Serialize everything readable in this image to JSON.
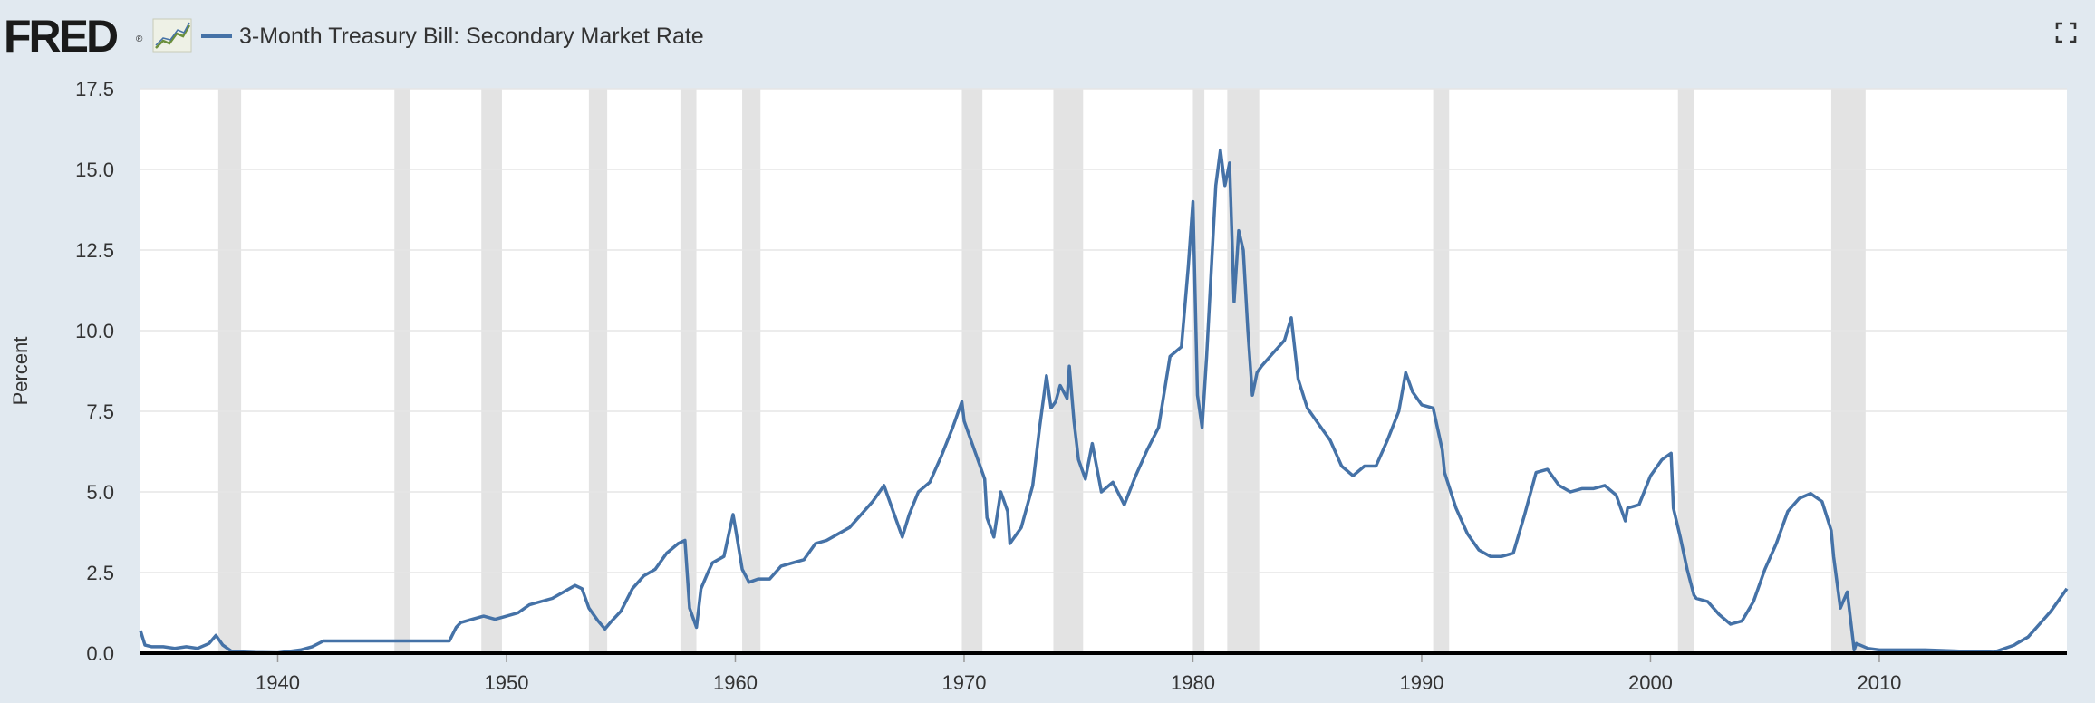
{
  "header": {
    "logo_text": "FRED",
    "logo_reg": "®",
    "series_title": "3-Month Treasury Bill: Secondary Market Rate"
  },
  "icons": {
    "graph": "graph-icon",
    "fullscreen": "fullscreen-icon"
  },
  "colors": {
    "series": "#4572a7",
    "recession": "#e3e3e3",
    "background": "#e1e9f0",
    "plot_background": "#ffffff",
    "grid": "#e6e6e6"
  },
  "chart_data": {
    "type": "line",
    "ylabel": "Percent",
    "xlim": [
      1934,
      2018.2
    ],
    "ylim": [
      0,
      17.5
    ],
    "yticks": [
      "0.0",
      "2.5",
      "5.0",
      "7.5",
      "10.0",
      "12.5",
      "15.0",
      "17.5"
    ],
    "xticks": [
      "1940",
      "1950",
      "1960",
      "1970",
      "1980",
      "1990",
      "2000",
      "2010"
    ],
    "grid": "horizontal",
    "recessions": [
      [
        1937.4,
        1938.4
      ],
      [
        1945.1,
        1945.8
      ],
      [
        1948.9,
        1949.8
      ],
      [
        1953.6,
        1954.4
      ],
      [
        1957.6,
        1958.3
      ],
      [
        1960.3,
        1961.1
      ],
      [
        1969.9,
        1970.8
      ],
      [
        1973.9,
        1975.2
      ],
      [
        1980.0,
        1980.5
      ],
      [
        1981.5,
        1982.9
      ],
      [
        1990.5,
        1991.2
      ],
      [
        2001.2,
        2001.9
      ],
      [
        2007.9,
        2009.4
      ]
    ],
    "series": [
      {
        "x": [
          1934.0,
          1934.2,
          1934.5,
          1935.0,
          1935.5,
          1936.0,
          1936.5,
          1937.0,
          1937.3,
          1937.6,
          1938.0,
          1939.0,
          1940.0,
          1941.0,
          1941.5,
          1942.0,
          1942.3,
          1942.6,
          1943.0,
          1945.0,
          1947.0,
          1947.5,
          1947.8,
          1948.0,
          1948.5,
          1949.0,
          1949.5,
          1950.0,
          1950.5,
          1951.0,
          1951.5,
          1952.0,
          1952.5,
          1953.0,
          1953.3,
          1953.6,
          1954.0,
          1954.3,
          1954.6,
          1955.0,
          1955.5,
          1956.0,
          1956.5,
          1957.0,
          1957.5,
          1957.8,
          1958.0,
          1958.3,
          1958.5,
          1958.8,
          1959.0,
          1959.5,
          1959.9,
          1960.0,
          1960.3,
          1960.6,
          1961.0,
          1961.5,
          1962.0,
          1962.5,
          1963.0,
          1963.5,
          1964.0,
          1965.0,
          1965.5,
          1966.0,
          1966.5,
          1967.0,
          1967.3,
          1967.6,
          1968.0,
          1968.5,
          1969.0,
          1969.5,
          1969.9,
          1970.0,
          1970.5,
          1970.9,
          1971.0,
          1971.3,
          1971.6,
          1971.9,
          1972.0,
          1972.5,
          1973.0,
          1973.3,
          1973.6,
          1973.8,
          1974.0,
          1974.2,
          1974.5,
          1974.6,
          1974.8,
          1975.0,
          1975.3,
          1975.6,
          1976.0,
          1976.5,
          1977.0,
          1977.5,
          1978.0,
          1978.5,
          1979.0,
          1979.5,
          1979.8,
          1980.0,
          1980.2,
          1980.4,
          1980.6,
          1981.0,
          1981.2,
          1981.4,
          1981.6,
          1981.8,
          1982.0,
          1982.2,
          1982.4,
          1982.6,
          1982.8,
          1983.0,
          1983.5,
          1984.0,
          1984.3,
          1984.6,
          1985.0,
          1985.5,
          1986.0,
          1986.5,
          1987.0,
          1987.5,
          1988.0,
          1988.5,
          1989.0,
          1989.3,
          1989.6,
          1990.0,
          1990.5,
          1990.9,
          1991.0,
          1991.5,
          1992.0,
          1992.5,
          1993.0,
          1993.5,
          1994.0,
          1994.5,
          1995.0,
          1995.5,
          1996.0,
          1996.5,
          1997.0,
          1997.5,
          1998.0,
          1998.5,
          1998.9,
          1999.0,
          1999.5,
          2000.0,
          2000.5,
          2000.9,
          2001.0,
          2001.3,
          2001.6,
          2001.9,
          2002.0,
          2002.5,
          2003.0,
          2003.5,
          2004.0,
          2004.5,
          2005.0,
          2005.5,
          2006.0,
          2006.5,
          2007.0,
          2007.5,
          2007.9,
          2008.0,
          2008.3,
          2008.6,
          2008.9,
          2009.0,
          2009.5,
          2010.0,
          2012.0,
          2014.0,
          2015.0,
          2015.9,
          2016.0,
          2016.5,
          2017.0,
          2017.5,
          2018.0,
          2018.2
        ],
        "values": [
          0.7,
          0.25,
          0.2,
          0.2,
          0.15,
          0.2,
          0.15,
          0.3,
          0.55,
          0.25,
          0.05,
          0.02,
          0.01,
          0.1,
          0.2,
          0.38,
          0.38,
          0.38,
          0.38,
          0.38,
          0.38,
          0.38,
          0.8,
          0.95,
          1.05,
          1.15,
          1.05,
          1.15,
          1.25,
          1.5,
          1.6,
          1.7,
          1.9,
          2.1,
          2.0,
          1.4,
          1.0,
          0.75,
          1.0,
          1.3,
          2.0,
          2.4,
          2.6,
          3.1,
          3.4,
          3.5,
          1.4,
          0.8,
          2.0,
          2.5,
          2.8,
          3.0,
          4.3,
          3.9,
          2.6,
          2.2,
          2.3,
          2.3,
          2.7,
          2.8,
          2.9,
          3.4,
          3.5,
          3.9,
          4.3,
          4.7,
          5.2,
          4.2,
          3.6,
          4.3,
          5.0,
          5.3,
          6.1,
          7.0,
          7.8,
          7.2,
          6.2,
          5.4,
          4.2,
          3.6,
          5.0,
          4.4,
          3.4,
          3.9,
          5.2,
          7.0,
          8.6,
          7.6,
          7.8,
          8.3,
          7.9,
          8.9,
          7.2,
          6.0,
          5.4,
          6.5,
          5.0,
          5.3,
          4.6,
          5.5,
          6.3,
          7.0,
          9.2,
          9.5,
          12.0,
          14.0,
          8.0,
          7.0,
          9.2,
          14.5,
          15.6,
          14.5,
          15.2,
          10.9,
          13.1,
          12.5,
          10.0,
          8.0,
          8.7,
          8.9,
          9.3,
          9.7,
          10.4,
          8.5,
          7.6,
          7.1,
          6.6,
          5.8,
          5.5,
          5.8,
          5.8,
          6.6,
          7.5,
          8.7,
          8.1,
          7.7,
          7.6,
          6.3,
          5.6,
          4.5,
          3.7,
          3.2,
          3.0,
          3.0,
          3.1,
          4.3,
          5.6,
          5.7,
          5.2,
          5.0,
          5.1,
          5.1,
          5.2,
          4.9,
          4.1,
          4.5,
          4.6,
          5.5,
          6.0,
          6.2,
          4.5,
          3.6,
          2.6,
          1.8,
          1.7,
          1.6,
          1.2,
          0.9,
          1.0,
          1.6,
          2.6,
          3.4,
          4.4,
          4.8,
          4.95,
          4.7,
          3.8,
          3.0,
          1.4,
          1.9,
          0.1,
          0.3,
          0.15,
          0.1,
          0.1,
          0.05,
          0.03,
          0.25,
          0.3,
          0.5,
          0.9,
          1.3,
          1.8,
          2.0
        ]
      }
    ]
  }
}
